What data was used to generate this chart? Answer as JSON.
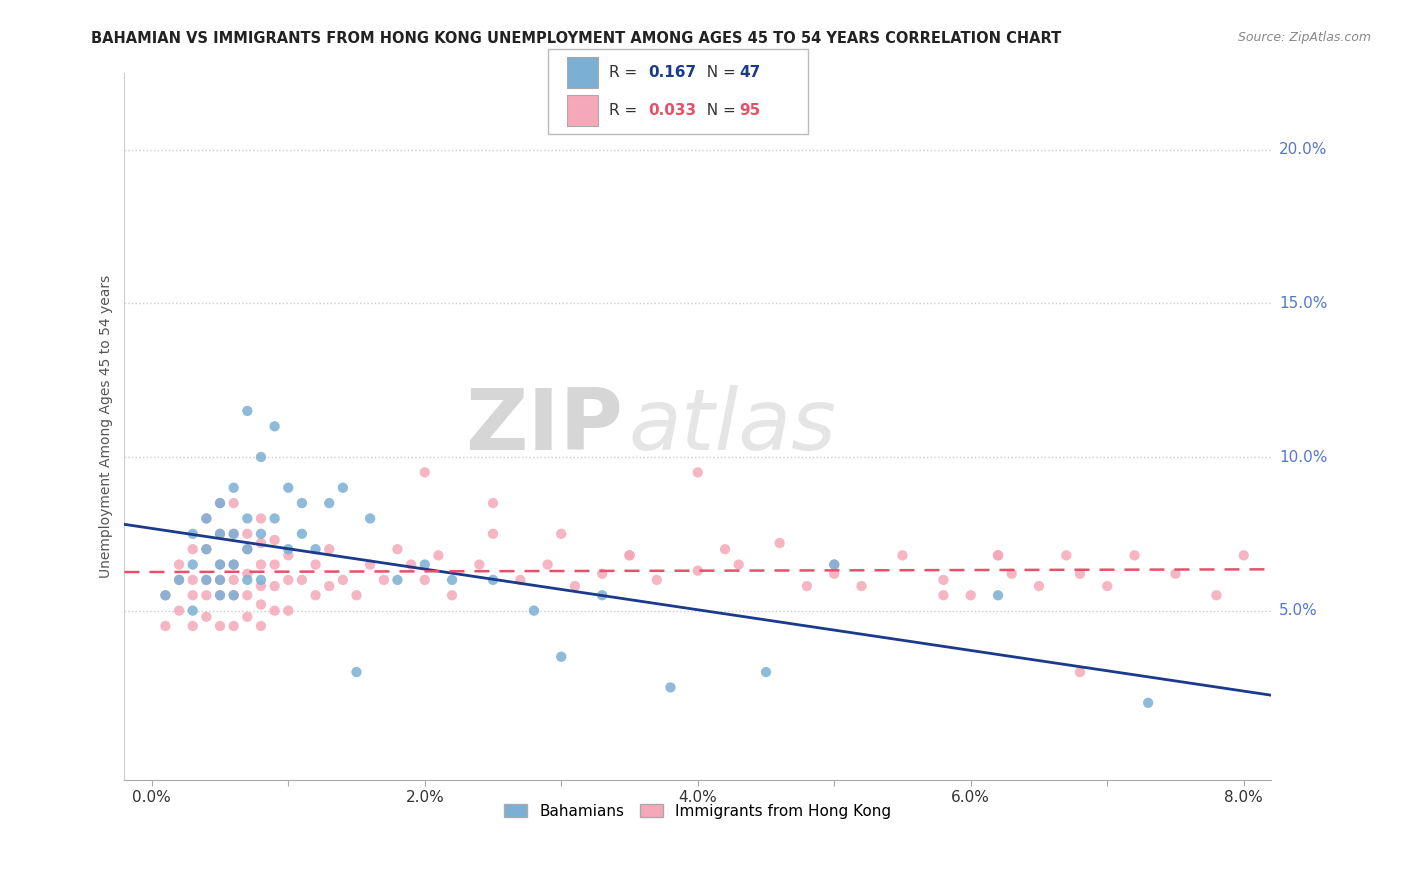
{
  "title": "BAHAMIAN VS IMMIGRANTS FROM HONG KONG UNEMPLOYMENT AMONG AGES 45 TO 54 YEARS CORRELATION CHART",
  "source": "Source: ZipAtlas.com",
  "ylabel": "Unemployment Among Ages 45 to 54 years",
  "xlabel_ticks": [
    "0.0%",
    "",
    "2.0%",
    "",
    "4.0%",
    "",
    "6.0%",
    "",
    "8.0%"
  ],
  "xlabel_vals": [
    0.0,
    0.01,
    0.02,
    0.03,
    0.04,
    0.05,
    0.06,
    0.07,
    0.08
  ],
  "ylabel_right_ticks": [
    "5.0%",
    "10.0%",
    "15.0%",
    "20.0%"
  ],
  "ylabel_right_vals": [
    0.05,
    0.1,
    0.15,
    0.2
  ],
  "ylim": [
    -0.005,
    0.225
  ],
  "xlim": [
    -0.002,
    0.082
  ],
  "blue_color": "#7BAFD4",
  "pink_color": "#F4A8B8",
  "blue_line_color": "#1A3A8C",
  "pink_line_color": "#E8506A",
  "R_blue": 0.167,
  "N_blue": 47,
  "R_pink": 0.033,
  "N_pink": 95,
  "legend_label_blue": "Bahamians",
  "legend_label_pink": "Immigrants from Hong Kong",
  "watermark_zip": "ZIP",
  "watermark_atlas": "atlas",
  "background_color": "#FFFFFF",
  "grid_color": "#CCCCCC",
  "title_color": "#222222",
  "blue_scatter_x": [
    0.001,
    0.002,
    0.003,
    0.003,
    0.003,
    0.004,
    0.004,
    0.004,
    0.005,
    0.005,
    0.005,
    0.005,
    0.005,
    0.006,
    0.006,
    0.006,
    0.006,
    0.007,
    0.007,
    0.007,
    0.007,
    0.008,
    0.008,
    0.008,
    0.009,
    0.009,
    0.01,
    0.01,
    0.011,
    0.011,
    0.012,
    0.013,
    0.014,
    0.015,
    0.016,
    0.018,
    0.02,
    0.022,
    0.025,
    0.028,
    0.03,
    0.033,
    0.038,
    0.045,
    0.05,
    0.062,
    0.073
  ],
  "blue_scatter_y": [
    0.055,
    0.06,
    0.05,
    0.065,
    0.075,
    0.06,
    0.07,
    0.08,
    0.055,
    0.06,
    0.065,
    0.075,
    0.085,
    0.055,
    0.065,
    0.075,
    0.09,
    0.06,
    0.07,
    0.08,
    0.115,
    0.06,
    0.075,
    0.1,
    0.08,
    0.11,
    0.07,
    0.09,
    0.075,
    0.085,
    0.07,
    0.085,
    0.09,
    0.03,
    0.08,
    0.06,
    0.065,
    0.06,
    0.06,
    0.05,
    0.035,
    0.055,
    0.025,
    0.03,
    0.065,
    0.055,
    0.02
  ],
  "pink_scatter_x": [
    0.001,
    0.001,
    0.002,
    0.002,
    0.002,
    0.003,
    0.003,
    0.003,
    0.003,
    0.004,
    0.004,
    0.004,
    0.004,
    0.004,
    0.005,
    0.005,
    0.005,
    0.005,
    0.005,
    0.005,
    0.006,
    0.006,
    0.006,
    0.006,
    0.006,
    0.006,
    0.007,
    0.007,
    0.007,
    0.007,
    0.007,
    0.008,
    0.008,
    0.008,
    0.008,
    0.008,
    0.008,
    0.009,
    0.009,
    0.009,
    0.009,
    0.01,
    0.01,
    0.01,
    0.011,
    0.012,
    0.012,
    0.013,
    0.013,
    0.014,
    0.015,
    0.016,
    0.017,
    0.018,
    0.019,
    0.02,
    0.021,
    0.022,
    0.024,
    0.025,
    0.027,
    0.029,
    0.031,
    0.033,
    0.035,
    0.037,
    0.04,
    0.042,
    0.043,
    0.046,
    0.048,
    0.05,
    0.052,
    0.055,
    0.058,
    0.06,
    0.062,
    0.063,
    0.065,
    0.067,
    0.068,
    0.07,
    0.072,
    0.075,
    0.078,
    0.08,
    0.02,
    0.025,
    0.03,
    0.035,
    0.04,
    0.05,
    0.058,
    0.062,
    0.068
  ],
  "pink_scatter_y": [
    0.045,
    0.055,
    0.05,
    0.06,
    0.065,
    0.045,
    0.055,
    0.06,
    0.07,
    0.048,
    0.055,
    0.06,
    0.07,
    0.08,
    0.045,
    0.055,
    0.06,
    0.065,
    0.075,
    0.085,
    0.045,
    0.055,
    0.06,
    0.065,
    0.075,
    0.085,
    0.048,
    0.055,
    0.062,
    0.07,
    0.075,
    0.045,
    0.052,
    0.058,
    0.065,
    0.072,
    0.08,
    0.05,
    0.058,
    0.065,
    0.073,
    0.05,
    0.06,
    0.068,
    0.06,
    0.055,
    0.065,
    0.058,
    0.07,
    0.06,
    0.055,
    0.065,
    0.06,
    0.07,
    0.065,
    0.06,
    0.068,
    0.055,
    0.065,
    0.075,
    0.06,
    0.065,
    0.058,
    0.062,
    0.068,
    0.06,
    0.063,
    0.07,
    0.065,
    0.072,
    0.058,
    0.062,
    0.058,
    0.068,
    0.06,
    0.055,
    0.068,
    0.062,
    0.058,
    0.068,
    0.062,
    0.058,
    0.068,
    0.062,
    0.055,
    0.068,
    0.095,
    0.085,
    0.075,
    0.068,
    0.095,
    0.065,
    0.055,
    0.068,
    0.03
  ]
}
